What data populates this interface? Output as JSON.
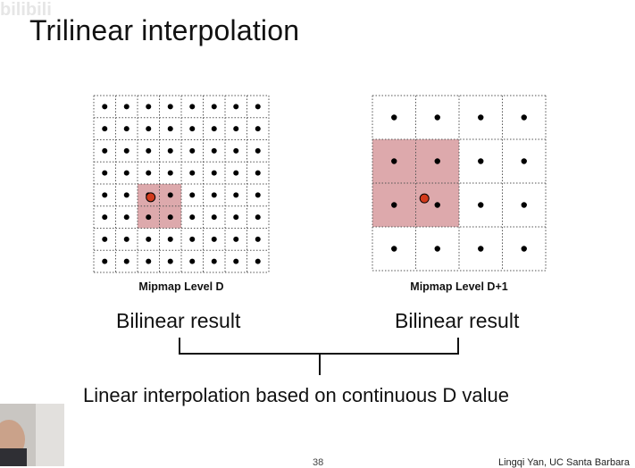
{
  "slide": {
    "title": "Trilinear interpolation",
    "watermark": "bilibili",
    "page_number": "38",
    "author": "Lingqi Yan, UC Santa Barbara"
  },
  "left_grid": {
    "label": "Mipmap Level D",
    "rows": 8,
    "cols": 8,
    "highlight_rows": [
      4,
      5
    ],
    "highlight_cols": [
      2,
      3
    ],
    "sample_point": [
      2.6,
      4.6
    ]
  },
  "right_grid": {
    "label": "Mipmap Level D+1",
    "rows": 4,
    "cols": 4,
    "highlight_rows": [
      1,
      2
    ],
    "highlight_cols": [
      0,
      1
    ],
    "sample_point": [
      1.2,
      2.35
    ]
  },
  "results": {
    "left": "Bilinear result",
    "right": "Bilinear result",
    "combined": "Linear interpolation based on continuous D value"
  },
  "colors": {
    "highlight": "#d9a0a3",
    "sample_point": "#d23a1c",
    "dot": "#000000",
    "grid_line": "#555555"
  }
}
